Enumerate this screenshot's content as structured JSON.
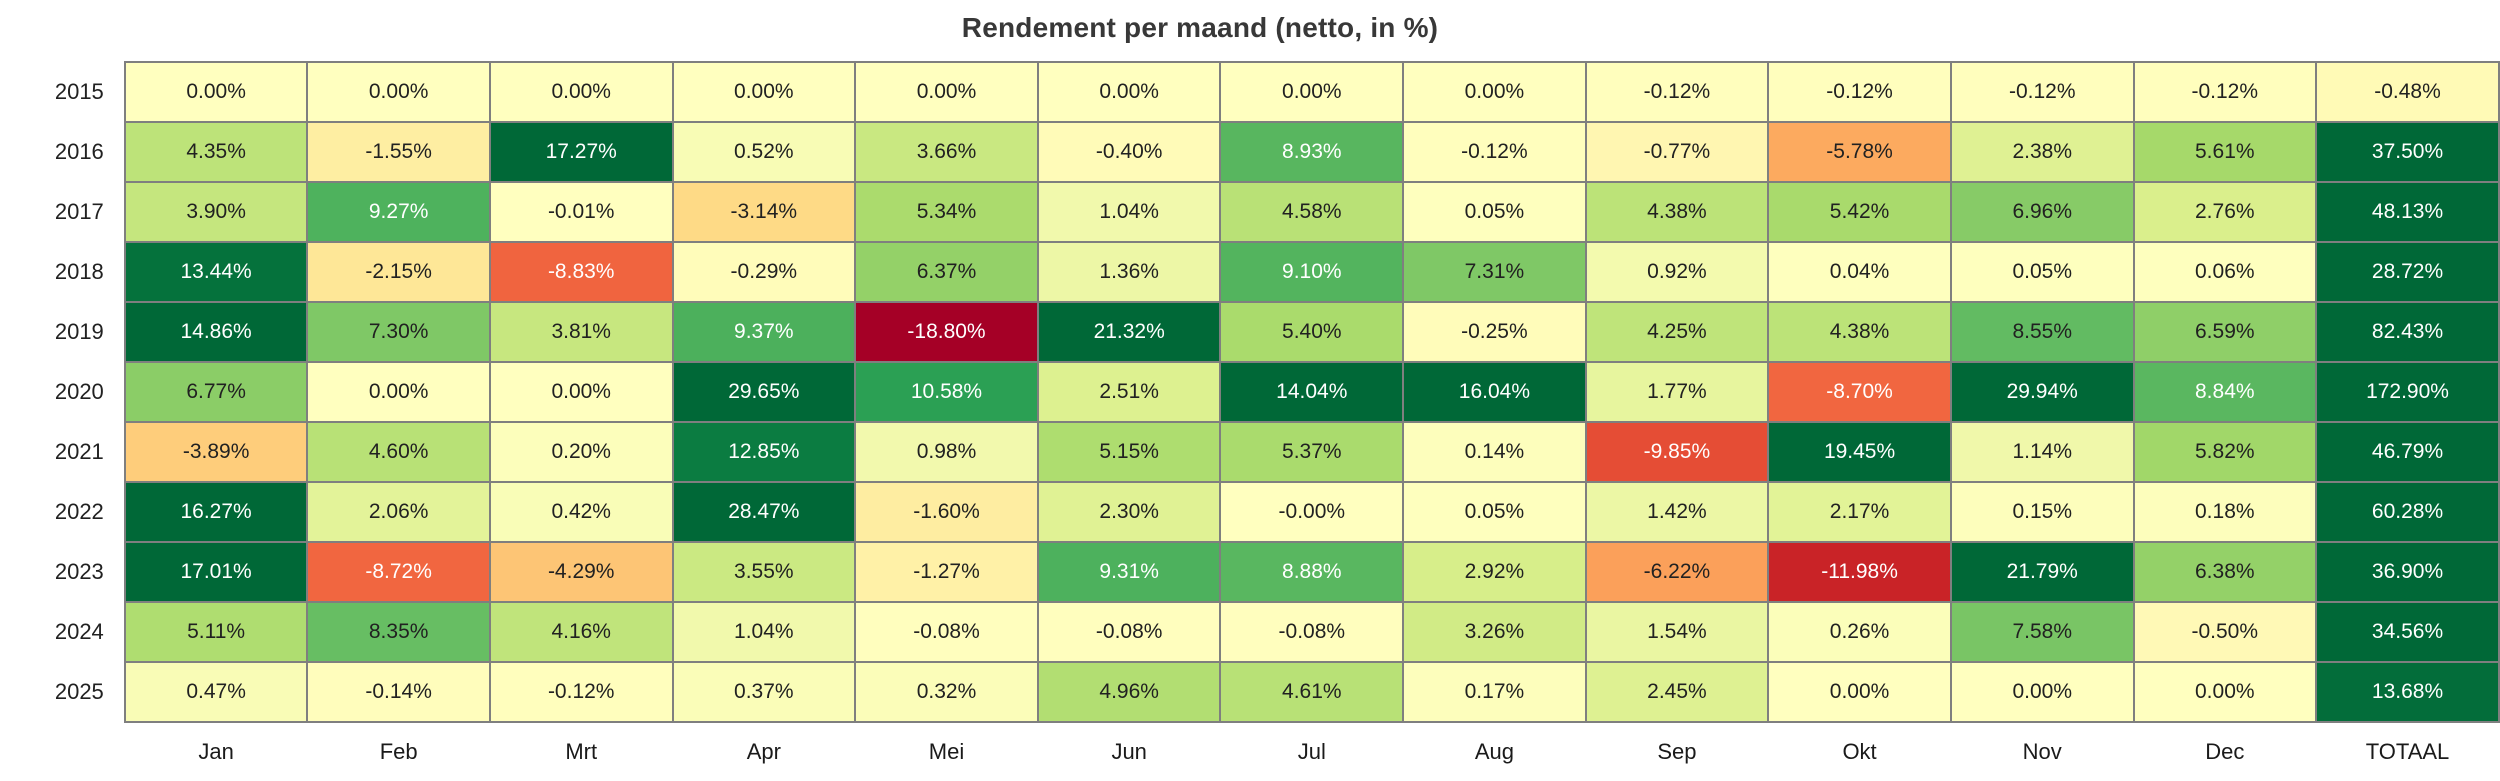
{
  "title": "Rendement per maand (netto, in %)",
  "chart_data": {
    "type": "heatmap",
    "title": "Rendement per maand (netto, in %)",
    "columns": [
      "Jan",
      "Feb",
      "Mrt",
      "Apr",
      "Mei",
      "Jun",
      "Jul",
      "Aug",
      "Sep",
      "Okt",
      "Nov",
      "Dec",
      "TOTAAL"
    ],
    "value_suffix": "%",
    "rows": [
      {
        "year": "2015",
        "values": [
          "0.00",
          "0.00",
          "0.00",
          "0.00",
          "0.00",
          "0.00",
          "0.00",
          "0.00",
          "-0.12",
          "-0.12",
          "-0.12",
          "-0.12"
        ],
        "total": "-0.48"
      },
      {
        "year": "2016",
        "values": [
          "4.35",
          "-1.55",
          "17.27",
          "0.52",
          "3.66",
          "-0.40",
          "8.93",
          "-0.12",
          "-0.77",
          "-5.78",
          "2.38",
          "5.61"
        ],
        "total": "37.50"
      },
      {
        "year": "2017",
        "values": [
          "3.90",
          "9.27",
          "-0.01",
          "-3.14",
          "5.34",
          "1.04",
          "4.58",
          "0.05",
          "4.38",
          "5.42",
          "6.96",
          "2.76"
        ],
        "total": "48.13"
      },
      {
        "year": "2018",
        "values": [
          "13.44",
          "-2.15",
          "-8.83",
          "-0.29",
          "6.37",
          "1.36",
          "9.10",
          "7.31",
          "0.92",
          "0.04",
          "0.05",
          "0.06"
        ],
        "total": "28.72"
      },
      {
        "year": "2019",
        "values": [
          "14.86",
          "7.30",
          "3.81",
          "9.37",
          "-18.80",
          "21.32",
          "5.40",
          "-0.25",
          "4.25",
          "4.38",
          "8.55",
          "6.59"
        ],
        "total": "82.43"
      },
      {
        "year": "2020",
        "values": [
          "6.77",
          "0.00",
          "0.00",
          "29.65",
          "10.58",
          "2.51",
          "14.04",
          "16.04",
          "1.77",
          "-8.70",
          "29.94",
          "8.84"
        ],
        "total": "172.90"
      },
      {
        "year": "2021",
        "values": [
          "-3.89",
          "4.60",
          "0.20",
          "12.85",
          "0.98",
          "5.15",
          "5.37",
          "0.14",
          "-9.85",
          "19.45",
          "1.14",
          "5.82"
        ],
        "total": "46.79"
      },
      {
        "year": "2022",
        "values": [
          "16.27",
          "2.06",
          "0.42",
          "28.47",
          "-1.60",
          "2.30",
          "-0.00",
          "0.05",
          "1.42",
          "2.17",
          "0.15",
          "0.18"
        ],
        "total": "60.28"
      },
      {
        "year": "2023",
        "values": [
          "17.01",
          "-8.72",
          "-4.29",
          "3.55",
          "-1.27",
          "9.31",
          "8.88",
          "2.92",
          "-6.22",
          "-11.98",
          "21.79",
          "6.38"
        ],
        "total": "36.90"
      },
      {
        "year": "2024",
        "values": [
          "5.11",
          "8.35",
          "4.16",
          "1.04",
          "-0.08",
          "-0.08",
          "-0.08",
          "3.26",
          "1.54",
          "0.26",
          "7.58",
          "-0.50"
        ],
        "total": "34.56"
      },
      {
        "year": "2025",
        "values": [
          "0.47",
          "-0.14",
          "-0.12",
          "0.37",
          "0.32",
          "4.96",
          "4.61",
          "0.17",
          "2.45",
          "0.00",
          "0.00",
          "0.00"
        ],
        "total": "13.68"
      }
    ],
    "colormap": {
      "name": "RdYlGn",
      "domain": [
        -14,
        14
      ],
      "anchors": [
        "#a50026",
        "#d73027",
        "#f46d43",
        "#fdae61",
        "#fee08b",
        "#ffffbf",
        "#d9ef8b",
        "#a6d96a",
        "#66bd63",
        "#1a9850",
        "#006837"
      ],
      "text_dark": "#212121",
      "text_light": "#ffffff",
      "luminance_threshold": 148
    },
    "grid_border_color": "#7f7f7f"
  }
}
